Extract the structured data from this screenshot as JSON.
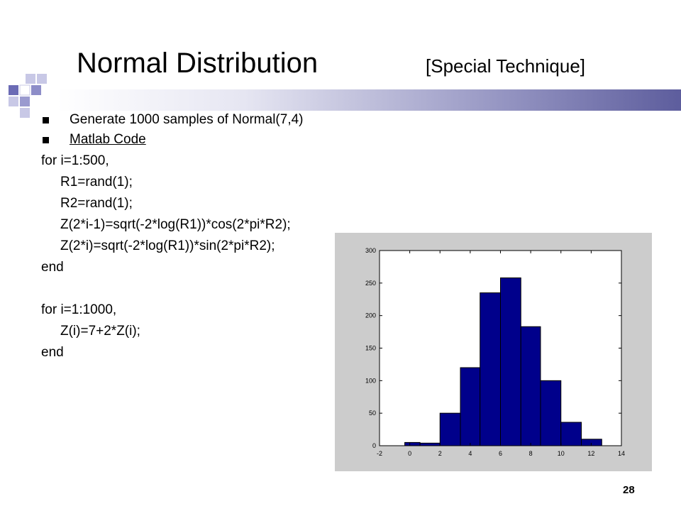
{
  "slide": {
    "title": "Normal Distribution",
    "subtitle": "[Special Technique]",
    "page_number": "28",
    "bullets": [
      {
        "text": "Generate 1000 samples of Normal(7,4)",
        "underline": false
      },
      {
        "text": "Matlab Code",
        "underline": true
      }
    ],
    "code_lines": [
      {
        "text": "for i=1:500,",
        "indent": false
      },
      {
        "text": "R1=rand(1);",
        "indent": true
      },
      {
        "text": "R2=rand(1);",
        "indent": true
      },
      {
        "text": "Z(2*i-1)=sqrt(-2*log(R1))*cos(2*pi*R2);",
        "indent": true
      },
      {
        "text": "Z(2*i)=sqrt(-2*log(R1))*sin(2*pi*R2);",
        "indent": true
      },
      {
        "text": "end",
        "indent": false
      },
      {
        "text": "",
        "indent": false
      },
      {
        "text": "for i=1:1000,",
        "indent": false
      },
      {
        "text": "Z(i)=7+2*Z(i);",
        "indent": true
      },
      {
        "text": "end",
        "indent": false
      }
    ]
  },
  "chart_data": {
    "type": "bar",
    "title": "",
    "xlabel": "",
    "ylabel": "",
    "xlim": [
      -2,
      14
    ],
    "ylim": [
      0,
      300
    ],
    "x_ticks": [
      -2,
      0,
      2,
      4,
      6,
      8,
      10,
      12,
      14
    ],
    "y_ticks": [
      0,
      50,
      100,
      150,
      200,
      250,
      300
    ],
    "bins": [
      {
        "x0": -0.33,
        "x1": 0.68,
        "value": 5
      },
      {
        "x0": 0.68,
        "x1": 2.0,
        "value": 4
      },
      {
        "x0": 2.0,
        "x1": 3.35,
        "value": 50
      },
      {
        "x0": 3.35,
        "x1": 4.65,
        "value": 120
      },
      {
        "x0": 4.65,
        "x1": 6.0,
        "value": 235
      },
      {
        "x0": 6.0,
        "x1": 7.35,
        "value": 258
      },
      {
        "x0": 7.35,
        "x1": 8.65,
        "value": 183
      },
      {
        "x0": 8.65,
        "x1": 10.0,
        "value": 100
      },
      {
        "x0": 10.0,
        "x1": 11.35,
        "value": 36
      },
      {
        "x0": 11.35,
        "x1": 12.7,
        "value": 10
      }
    ],
    "bar_color": "#00008b",
    "grid": false
  }
}
